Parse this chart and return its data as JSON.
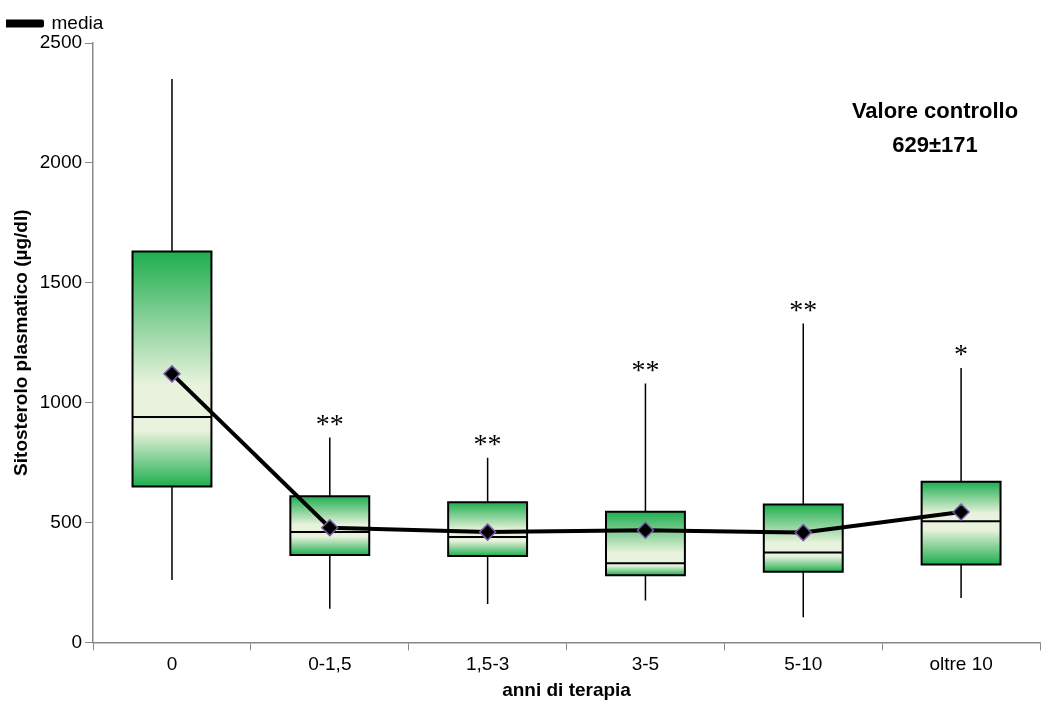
{
  "chart_data": {
    "type": "box",
    "xlabel": "anni di terapia",
    "ylabel": "Sitosterolo plasmatico (µg/dl)",
    "categories": [
      "0",
      "0-1,5",
      "1,5-3",
      "3-5",
      "5-10",
      "oltre 10"
    ],
    "series": [
      {
        "type": "box",
        "color": "#1fae4f",
        "boxes": [
          {
            "low": 260,
            "q1": 650,
            "median": 940,
            "q3": 1630,
            "high": 2350
          },
          {
            "low": 140,
            "q1": 365,
            "median": 460,
            "q3": 610,
            "high": 855
          },
          {
            "low": 160,
            "q1": 360,
            "median": 440,
            "q3": 585,
            "high": 770
          },
          {
            "low": 175,
            "q1": 280,
            "median": 330,
            "q3": 545,
            "high": 1080
          },
          {
            "low": 105,
            "q1": 295,
            "median": 375,
            "q3": 575,
            "high": 1330
          },
          {
            "low": 185,
            "q1": 325,
            "median": 505,
            "q3": 670,
            "high": 1145
          }
        ]
      },
      {
        "type": "line",
        "name": "media",
        "color": "#000000",
        "values": [
          1120,
          478,
          460,
          468,
          458,
          544
        ]
      }
    ],
    "ylim": [
      0,
      2500
    ],
    "yticks": [
      0,
      500,
      1000,
      1500,
      2000,
      2500
    ],
    "grid": false,
    "legend": "top left",
    "marker": "diamond",
    "line_style": "solid",
    "annotations": [
      {
        "text": "**",
        "x": "0-1,5",
        "y": 855
      },
      {
        "text": "**",
        "x": "1,5-3",
        "y": 770
      },
      {
        "text": "**",
        "x": "3-5",
        "y": 1080
      },
      {
        "text": "**",
        "x": "5-10",
        "y": 1330
      },
      {
        "text": "*",
        "x": "oltre 10",
        "y": 1145
      },
      "Valore controllo\n629±171"
    ]
  }
}
